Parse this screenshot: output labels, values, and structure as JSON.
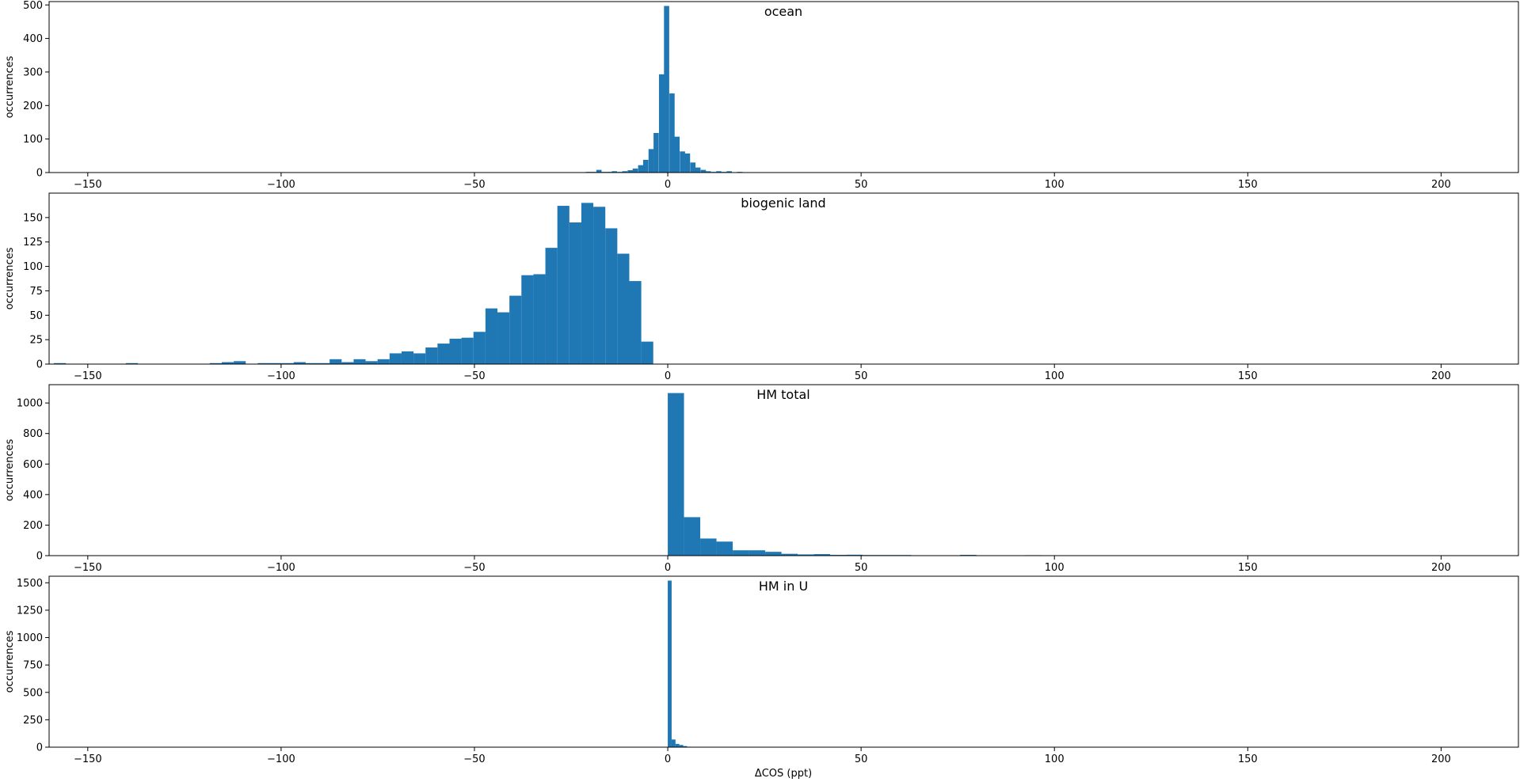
{
  "figure": {
    "xlabel": "ΔCOS (ppt)"
  },
  "colors": {
    "bar": "#1f77b4",
    "axis": "#000000",
    "background": "#ffffff"
  },
  "chart_data": [
    {
      "type": "bar",
      "title": "ocean",
      "ylabel": "occurrences",
      "xlim": [
        -160,
        220
      ],
      "ylim": [
        0,
        510
      ],
      "xticks": [
        -150,
        -100,
        -50,
        0,
        50,
        100,
        150,
        200
      ],
      "yticks": [
        0,
        100,
        200,
        300,
        400,
        500
      ],
      "bin_width": 1.35,
      "bins": [
        [
          -20.5,
          2
        ],
        [
          -19.2,
          2
        ],
        [
          -17.8,
          8
        ],
        [
          -16.5,
          2
        ],
        [
          -15.1,
          2
        ],
        [
          -13.8,
          4
        ],
        [
          -12.4,
          2
        ],
        [
          -11.1,
          4
        ],
        [
          -9.7,
          7
        ],
        [
          -8.4,
          12
        ],
        [
          -7.0,
          22
        ],
        [
          -5.7,
          38
        ],
        [
          -4.3,
          70
        ],
        [
          -3.0,
          118
        ],
        [
          -1.6,
          293
        ],
        [
          -0.3,
          497
        ],
        [
          1.1,
          236
        ],
        [
          2.4,
          107
        ],
        [
          3.8,
          63
        ],
        [
          5.1,
          57
        ],
        [
          6.5,
          30
        ],
        [
          7.8,
          15
        ],
        [
          9.2,
          8
        ],
        [
          10.5,
          4
        ],
        [
          11.9,
          2
        ],
        [
          13.2,
          4
        ],
        [
          14.6,
          2
        ],
        [
          15.9,
          4
        ],
        [
          18.6,
          2
        ]
      ]
    },
    {
      "type": "bar",
      "title": "biogenic land",
      "ylabel": "occurrences",
      "xlim": [
        -160,
        220
      ],
      "ylim": [
        0,
        175
      ],
      "xticks": [
        -150,
        -100,
        -50,
        0,
        50,
        100,
        150,
        200
      ],
      "yticks": [
        0,
        25,
        50,
        75,
        100,
        125,
        150
      ],
      "bin_width": 3.1,
      "bins": [
        [
          -157.2,
          1
        ],
        [
          -138.6,
          1
        ],
        [
          -116.9,
          1
        ],
        [
          -113.8,
          2
        ],
        [
          -110.7,
          3
        ],
        [
          -104.5,
          1
        ],
        [
          -101.4,
          1
        ],
        [
          -98.3,
          1
        ],
        [
          -95.2,
          2
        ],
        [
          -92.1,
          1
        ],
        [
          -89.0,
          1
        ],
        [
          -85.9,
          5
        ],
        [
          -82.8,
          2
        ],
        [
          -79.7,
          5
        ],
        [
          -76.6,
          3
        ],
        [
          -73.5,
          5
        ],
        [
          -70.4,
          11
        ],
        [
          -67.3,
          13
        ],
        [
          -64.2,
          11
        ],
        [
          -61.1,
          17
        ],
        [
          -58.0,
          21
        ],
        [
          -54.9,
          26
        ],
        [
          -51.8,
          27
        ],
        [
          -48.7,
          33
        ],
        [
          -45.6,
          57
        ],
        [
          -42.5,
          53
        ],
        [
          -39.4,
          70
        ],
        [
          -36.3,
          91
        ],
        [
          -33.2,
          92
        ],
        [
          -30.1,
          119
        ],
        [
          -27.0,
          162
        ],
        [
          -23.9,
          145
        ],
        [
          -20.8,
          165
        ],
        [
          -17.7,
          161
        ],
        [
          -14.6,
          139
        ],
        [
          -11.5,
          113
        ],
        [
          -8.4,
          85
        ],
        [
          -5.3,
          23
        ]
      ]
    },
    {
      "type": "bar",
      "title": "HM total",
      "ylabel": "occurrences",
      "xlim": [
        -160,
        220
      ],
      "ylim": [
        0,
        1120
      ],
      "xticks": [
        -150,
        -100,
        -50,
        0,
        50,
        100,
        150,
        200
      ],
      "yticks": [
        0,
        200,
        400,
        600,
        800,
        1000
      ],
      "bin_width": 4.2,
      "bins": [
        [
          2.1,
          1065
        ],
        [
          6.3,
          252
        ],
        [
          10.5,
          112
        ],
        [
          14.7,
          92
        ],
        [
          18.9,
          35
        ],
        [
          23.1,
          35
        ],
        [
          27.3,
          25
        ],
        [
          31.5,
          12
        ],
        [
          35.7,
          8
        ],
        [
          39.9,
          10
        ],
        [
          44.1,
          5
        ],
        [
          48.3,
          6
        ],
        [
          52.5,
          4
        ],
        [
          56.7,
          4
        ],
        [
          60.9,
          4
        ],
        [
          65.1,
          2
        ],
        [
          69.3,
          2
        ],
        [
          73.5,
          2
        ],
        [
          77.7,
          5
        ],
        [
          81.9,
          2
        ],
        [
          86.1,
          2
        ],
        [
          90.3,
          2
        ],
        [
          94.5,
          3
        ]
      ]
    },
    {
      "type": "bar",
      "title": "HM in U",
      "ylabel": "occurrences",
      "xlim": [
        -160,
        220
      ],
      "ylim": [
        0,
        1560
      ],
      "xticks": [
        -150,
        -100,
        -50,
        0,
        50,
        100,
        150,
        200
      ],
      "yticks": [
        0,
        250,
        500,
        750,
        1000,
        1250,
        1500
      ],
      "bin_width": 1.0,
      "bins": [
        [
          0.5,
          1520
        ],
        [
          1.5,
          70
        ],
        [
          2.5,
          30
        ],
        [
          3.5,
          20
        ],
        [
          4.5,
          10
        ],
        [
          5.5,
          4
        ]
      ]
    }
  ]
}
